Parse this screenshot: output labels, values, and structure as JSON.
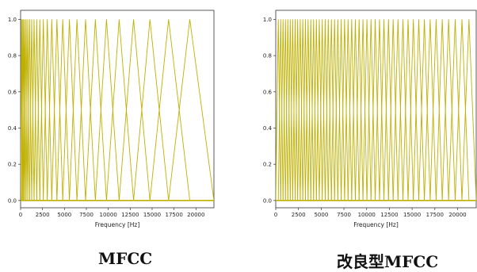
{
  "line_color": "#bfb000",
  "chart_data": [
    {
      "type": "line",
      "caption": "MFCC",
      "xlabel": "Frequency [Hz]",
      "ylabel": "",
      "xlim": [
        0,
        22050
      ],
      "ylim": [
        -0.04,
        1.05
      ],
      "x_ticks": [
        "0",
        "2500",
        "5000",
        "7500",
        "10000",
        "12500",
        "15000",
        "17500",
        "20000"
      ],
      "y_ticks": [
        "0.0",
        "0.2",
        "0.4",
        "0.6",
        "0.8",
        "1.0"
      ],
      "filter_bank": {
        "scale": "mel",
        "num_filters": 26,
        "f_min_hz": 0,
        "f_max_hz": 22050,
        "filter_peak_value": 1.0,
        "filter_shape": "triangular"
      }
    },
    {
      "type": "line",
      "caption": "改良型MFCC",
      "xlabel": "Frequency [Hz]",
      "ylabel": "",
      "xlim": [
        0,
        22050
      ],
      "ylim": [
        -0.04,
        1.05
      ],
      "x_ticks": [
        "0",
        "2500",
        "5000",
        "7500",
        "10000",
        "12500",
        "15000",
        "17500",
        "20000"
      ],
      "y_ticks": [
        "0.0",
        "0.2",
        "0.4",
        "0.6",
        "0.8",
        "1.0"
      ],
      "filter_bank": {
        "scale": "mixed (mel, low-frequency emphasis)",
        "num_filters": 50,
        "f_min_hz": 0,
        "f_max_hz": 22050,
        "filter_peak_value": 1.0,
        "filter_shape": "triangular"
      }
    }
  ]
}
